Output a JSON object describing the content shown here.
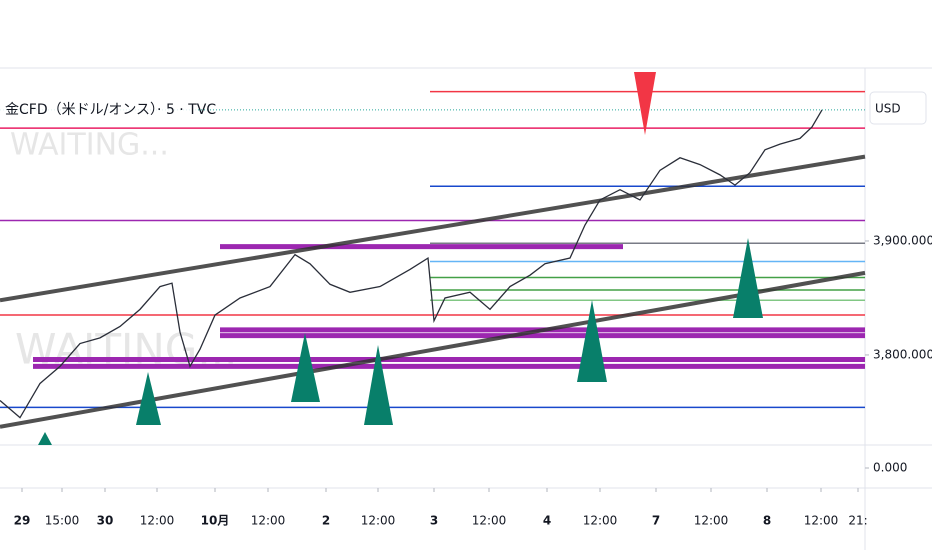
{
  "chart_data": {
    "type": "line",
    "title": "金CFD（米ドル/オンス）· 5 · TVC",
    "currency": "USD",
    "watermarks": [
      "WAITING...",
      "WAITING..."
    ],
    "color": "#2a2e39",
    "last_price_color": "#26a69a",
    "xlim": [
      0,
      865
    ],
    "xticks": [
      {
        "value": 22,
        "label": "29"
      },
      {
        "value": 62,
        "label": "15:00"
      },
      {
        "value": 105,
        "label": "30"
      },
      {
        "value": 157,
        "label": "12:00"
      },
      {
        "value": 215,
        "label": "10月"
      },
      {
        "value": 268,
        "label": "12:00"
      },
      {
        "value": 326,
        "label": "2"
      },
      {
        "value": 378,
        "label": "12:00"
      },
      {
        "value": 434,
        "label": "3"
      },
      {
        "value": 489,
        "label": "12:00"
      },
      {
        "value": 547,
        "label": "4"
      },
      {
        "value": 600,
        "label": "12:00"
      },
      {
        "value": 656,
        "label": "7"
      },
      {
        "value": 711,
        "label": "12:00"
      },
      {
        "value": 767,
        "label": "8"
      },
      {
        "value": 821,
        "label": "12:00"
      },
      {
        "value": 858,
        "label": "21:"
      }
    ],
    "ylim": [
      3721,
      4050
    ],
    "yticks": [
      {
        "value": 3900,
        "label": "3,900.000"
      },
      {
        "value": 3800,
        "label": "3,800.000"
      }
    ],
    "indicator_ticks": [
      {
        "value": 0,
        "label": "0.000"
      }
    ],
    "x": [
      0,
      20,
      40,
      60,
      80,
      100,
      120,
      140,
      160,
      172,
      180,
      190,
      200,
      215,
      240,
      270,
      295,
      310,
      330,
      350,
      380,
      410,
      428,
      434,
      445,
      470,
      490,
      510,
      530,
      545,
      570,
      585,
      600,
      620,
      640,
      660,
      680,
      700,
      720,
      735,
      750,
      765,
      780,
      800,
      812,
      822
    ],
    "values": [
      3760,
      3745,
      3775,
      3790,
      3810,
      3815,
      3825,
      3840,
      3860,
      3863,
      3820,
      3790,
      3805,
      3835,
      3850,
      3860,
      3888,
      3880,
      3862,
      3855,
      3860,
      3875,
      3885,
      3830,
      3850,
      3855,
      3840,
      3860,
      3870,
      3880,
      3885,
      3914,
      3936,
      3945,
      3936,
      3962,
      3973,
      3967,
      3958,
      3949,
      3960,
      3980,
      3985,
      3990,
      4000,
      4015
    ],
    "levels": [
      {
        "value": 4031,
        "xstart": 430,
        "color": "#f23645"
      },
      {
        "value": 3999,
        "xstart": 0,
        "color": "#e91e63"
      },
      {
        "value": 3948,
        "xstart": 430,
        "color": "#1848cc"
      },
      {
        "value": 3918,
        "xstart": 0,
        "color": "#9c27b0"
      },
      {
        "value": 3898,
        "xstart": 430,
        "color": "#787b86"
      },
      {
        "value": 3882,
        "xstart": 430,
        "color": "#64b5f6"
      },
      {
        "value": 3868,
        "xstart": 430,
        "color": "#43a047"
      },
      {
        "value": 3857,
        "xstart": 430,
        "color": "#43a047"
      },
      {
        "value": 3848,
        "xstart": 430,
        "color": "#81c784"
      },
      {
        "value": 3835,
        "xstart": 0,
        "color": "#f23645"
      },
      {
        "value": 3754,
        "xstart": 0,
        "color": "#1848cc"
      }
    ],
    "bands": [
      {
        "value": 3895,
        "xstart": 220,
        "xend": 623,
        "color": "#9c27b0"
      },
      {
        "value": 3822,
        "xstart": 220,
        "xend": 865,
        "color": "#9c27b0"
      },
      {
        "value": 3817,
        "xstart": 220,
        "xend": 865,
        "color": "#9c27b0"
      },
      {
        "value": 3796,
        "xstart": 33,
        "xend": 865,
        "color": "#9c27b0"
      },
      {
        "value": 3790,
        "xstart": 33,
        "xend": 865,
        "color": "#9c27b0"
      }
    ],
    "trendlines": [
      {
        "x": [
          0,
          865
        ],
        "values": [
          3848,
          3974
        ],
        "color": "#333333"
      },
      {
        "x": [
          0,
          865
        ],
        "values": [
          3737,
          3872
        ],
        "color": "#333333"
      }
    ]
  }
}
